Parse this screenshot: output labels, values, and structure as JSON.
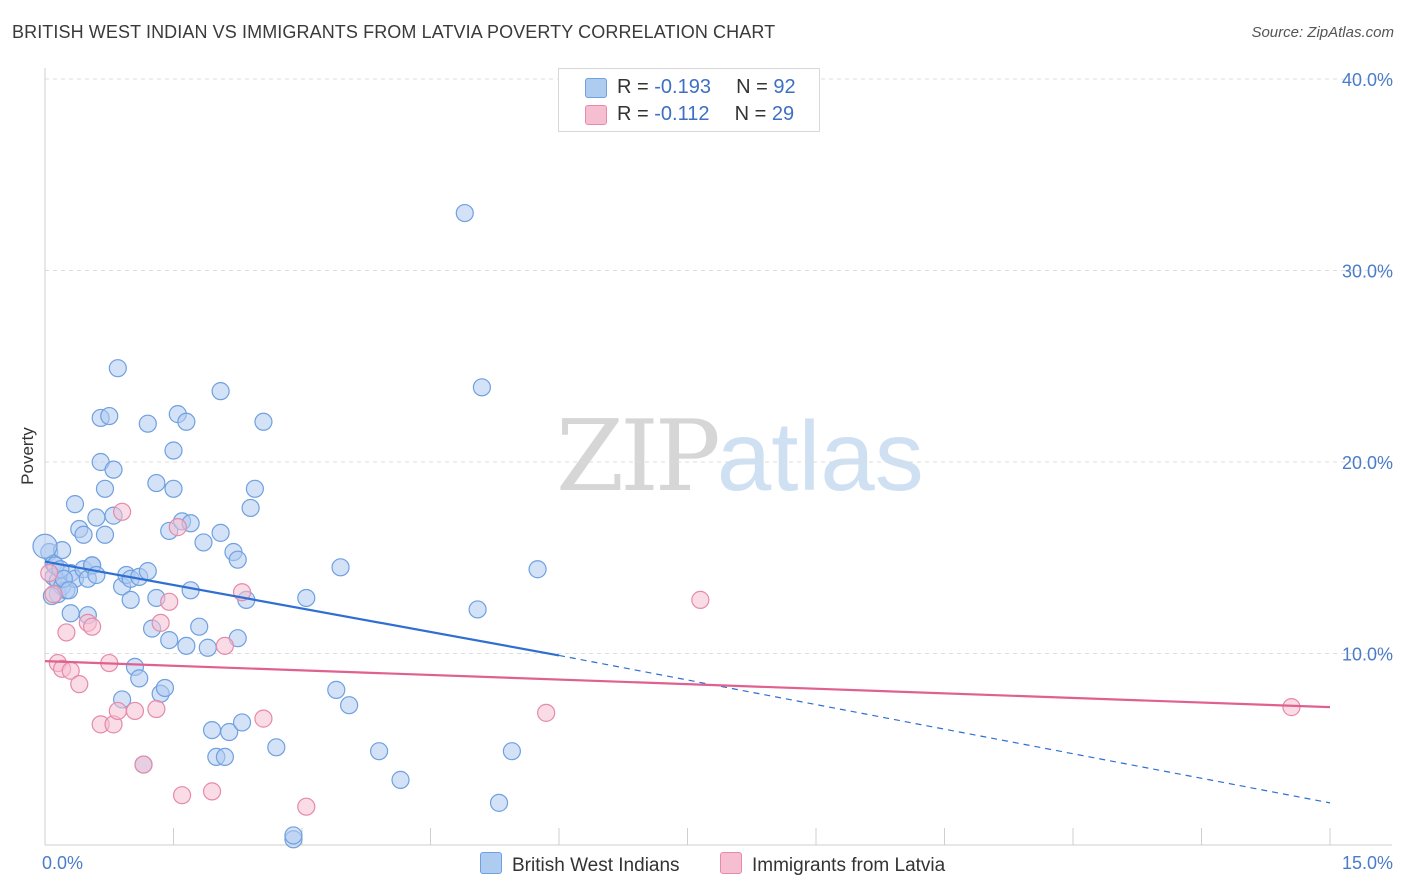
{
  "header": {
    "title": "BRITISH WEST INDIAN VS IMMIGRANTS FROM LATVIA POVERTY CORRELATION CHART",
    "source": "Source: ZipAtlas.com"
  },
  "watermark": {
    "zip": "ZIP",
    "atlas": "atlas"
  },
  "legend": {
    "rows": [
      {
        "r_label": "R = ",
        "r_value": "-0.193",
        "n_label": "N = ",
        "n_value": "92",
        "color": "#aecbf0"
      },
      {
        "r_label": "R = ",
        "r_value": "-0.112",
        "n_label": "N = ",
        "n_value": "29",
        "color": "#f6bfd1"
      }
    ]
  },
  "bottom_legend": {
    "items": [
      {
        "label": "British West Indians",
        "color": "#aecbf0"
      },
      {
        "label": "Immigrants from Latvia",
        "color": "#f6bfd1"
      }
    ]
  },
  "chart_data": {
    "type": "scatter",
    "title": "BRITISH WEST INDIAN VS IMMIGRANTS FROM LATVIA POVERTY CORRELATION CHART",
    "xlabel": "",
    "ylabel": "Poverty",
    "xlim": [
      0,
      15
    ],
    "ylim": [
      0,
      40
    ],
    "x_tick_labels": [
      "0.0%",
      "15.0%"
    ],
    "y_tick_labels": [
      "10.0%",
      "20.0%",
      "30.0%",
      "40.0%"
    ],
    "y_ticks": [
      10,
      20,
      30,
      40
    ],
    "grid": true,
    "series": [
      {
        "name": "British West Indians",
        "color": "#6fa0e0",
        "fill": "#aecbf0",
        "points": [
          [
            0.05,
            15.3
          ],
          [
            0.1,
            14.7
          ],
          [
            0.1,
            14.0
          ],
          [
            0.15,
            13.8
          ],
          [
            0.15,
            13.1
          ],
          [
            0.2,
            13.5
          ],
          [
            0.25,
            13.3
          ],
          [
            0.2,
            15.4
          ],
          [
            0.3,
            14.2
          ],
          [
            0.35,
            13.9
          ],
          [
            0.3,
            12.1
          ],
          [
            0.35,
            17.8
          ],
          [
            0.4,
            16.5
          ],
          [
            0.45,
            16.2
          ],
          [
            0.45,
            14.4
          ],
          [
            0.5,
            13.9
          ],
          [
            0.5,
            12.0
          ],
          [
            0.55,
            14.6
          ],
          [
            0.55,
            14.6
          ],
          [
            0.6,
            17.1
          ],
          [
            0.6,
            14.1
          ],
          [
            0.65,
            22.3
          ],
          [
            0.65,
            20.0
          ],
          [
            0.7,
            18.6
          ],
          [
            0.7,
            16.2
          ],
          [
            0.75,
            22.4
          ],
          [
            0.8,
            17.2
          ],
          [
            0.8,
            19.6
          ],
          [
            0.85,
            24.9
          ],
          [
            0.9,
            13.5
          ],
          [
            0.9,
            7.6
          ],
          [
            0.95,
            14.1
          ],
          [
            1.0,
            12.8
          ],
          [
            1.0,
            13.9
          ],
          [
            1.05,
            9.3
          ],
          [
            1.1,
            14.0
          ],
          [
            1.1,
            8.7
          ],
          [
            1.15,
            4.2
          ],
          [
            1.2,
            22.0
          ],
          [
            1.2,
            14.3
          ],
          [
            1.25,
            11.3
          ],
          [
            1.3,
            18.9
          ],
          [
            1.3,
            12.9
          ],
          [
            1.35,
            7.9
          ],
          [
            1.4,
            8.2
          ],
          [
            1.45,
            10.7
          ],
          [
            1.45,
            16.4
          ],
          [
            1.5,
            18.6
          ],
          [
            1.5,
            20.6
          ],
          [
            1.55,
            22.5
          ],
          [
            1.6,
            16.9
          ],
          [
            1.65,
            10.4
          ],
          [
            1.65,
            22.1
          ],
          [
            1.7,
            13.3
          ],
          [
            1.7,
            16.8
          ],
          [
            1.8,
            11.4
          ],
          [
            1.85,
            15.8
          ],
          [
            1.9,
            10.3
          ],
          [
            1.95,
            6.0
          ],
          [
            2.0,
            4.6
          ],
          [
            2.05,
            23.7
          ],
          [
            2.05,
            16.3
          ],
          [
            2.1,
            4.6
          ],
          [
            2.15,
            5.9
          ],
          [
            2.2,
            15.3
          ],
          [
            2.25,
            14.9
          ],
          [
            2.25,
            10.8
          ],
          [
            2.3,
            6.4
          ],
          [
            2.35,
            12.8
          ],
          [
            2.4,
            17.6
          ],
          [
            2.45,
            18.6
          ],
          [
            2.55,
            22.1
          ],
          [
            2.7,
            5.1
          ],
          [
            2.9,
            0.3
          ],
          [
            2.9,
            0.5
          ],
          [
            3.05,
            12.9
          ],
          [
            3.4,
            8.1
          ],
          [
            3.45,
            14.5
          ],
          [
            3.55,
            7.3
          ],
          [
            3.9,
            4.9
          ],
          [
            4.15,
            3.4
          ],
          [
            4.9,
            33.0
          ],
          [
            5.05,
            12.3
          ],
          [
            5.1,
            23.9
          ],
          [
            5.3,
            2.2
          ],
          [
            5.45,
            4.9
          ],
          [
            5.75,
            14.4
          ],
          [
            0.08,
            13.0
          ],
          [
            0.12,
            14.6
          ],
          [
            0.18,
            14.4
          ],
          [
            0.22,
            13.9
          ],
          [
            0.28,
            13.3
          ]
        ]
      },
      {
        "name": "Immigrants from Latvia",
        "color": "#e68aa8",
        "fill": "#f6bfd1",
        "points": [
          [
            0.05,
            14.2
          ],
          [
            0.1,
            13.1
          ],
          [
            0.15,
            9.5
          ],
          [
            0.2,
            9.2
          ],
          [
            0.25,
            11.1
          ],
          [
            0.3,
            9.1
          ],
          [
            0.4,
            8.4
          ],
          [
            0.5,
            11.6
          ],
          [
            0.55,
            11.4
          ],
          [
            0.65,
            6.3
          ],
          [
            0.75,
            9.5
          ],
          [
            0.8,
            6.3
          ],
          [
            0.85,
            7.0
          ],
          [
            0.9,
            17.4
          ],
          [
            1.05,
            7.0
          ],
          [
            1.15,
            4.2
          ],
          [
            1.3,
            7.1
          ],
          [
            1.35,
            11.6
          ],
          [
            1.45,
            12.7
          ],
          [
            1.55,
            16.6
          ],
          [
            1.6,
            2.6
          ],
          [
            1.95,
            2.8
          ],
          [
            2.1,
            10.4
          ],
          [
            2.3,
            13.2
          ],
          [
            2.55,
            6.6
          ],
          [
            3.05,
            2.0
          ],
          [
            5.85,
            6.9
          ],
          [
            7.65,
            12.8
          ],
          [
            14.55,
            7.2
          ]
        ]
      }
    ],
    "trendlines": [
      {
        "series": "British West Indians",
        "x_start": 0,
        "y_start": 14.8,
        "x_end": 6.0,
        "y_end": 9.9,
        "dashed_to_x": 15.0,
        "dashed_to_y": 2.2,
        "color": "#2e6fd1"
      },
      {
        "series": "Immigrants from Latvia",
        "x_start": 0,
        "y_start": 9.6,
        "x_end": 15.0,
        "y_end": 7.2,
        "color": "#e0608f"
      }
    ]
  }
}
